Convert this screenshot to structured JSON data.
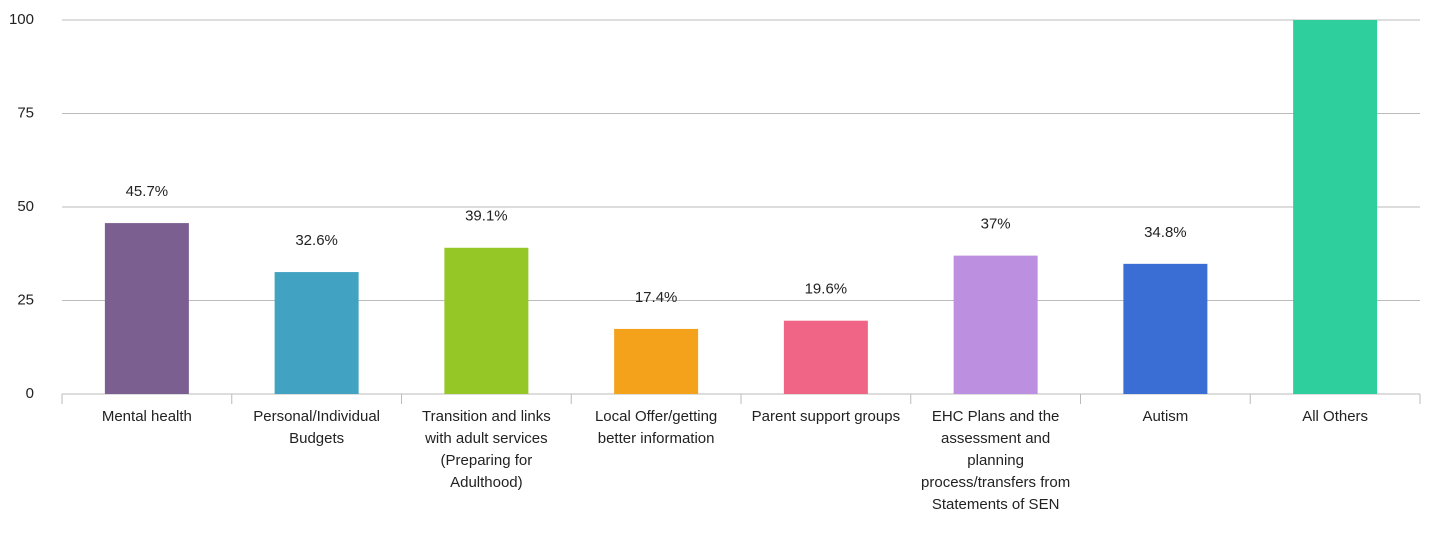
{
  "chart_data": {
    "type": "bar",
    "categories": [
      "Mental health",
      "Personal/Individual Budgets",
      "Transition and links with adult services (Preparing for Adulthood)",
      "Local Offer/getting better information",
      "Parent support groups",
      "EHC Plans and the assessment and planning process/transfers from Statements of SEN",
      "Autism",
      "All Others"
    ],
    "values": [
      45.7,
      32.6,
      39.1,
      17.4,
      19.6,
      37,
      34.8,
      100
    ],
    "value_labels": [
      "45.7%",
      "32.6%",
      "39.1%",
      "17.4%",
      "19.6%",
      "37%",
      "34.8%",
      null
    ],
    "colors": [
      "#7b5f91",
      "#41a2c2",
      "#95c827",
      "#f4a21c",
      "#f06585",
      "#bc8fe0",
      "#3a6ed4",
      "#2ecf9d"
    ],
    "ylim": [
      0,
      100
    ],
    "yticks": [
      0,
      25,
      50,
      75,
      100
    ],
    "grid": true
  }
}
